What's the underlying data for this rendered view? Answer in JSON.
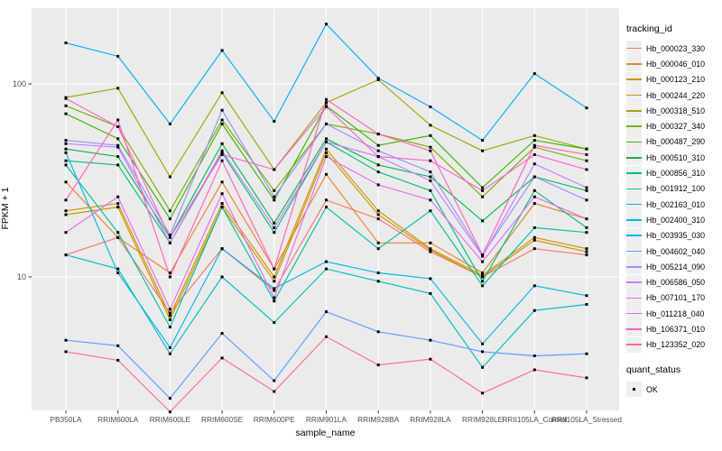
{
  "chart_data": {
    "type": "line",
    "xlabel": "sample_name",
    "ylabel": "FPKM + 1",
    "y_scale": "log10",
    "y_major_ticks": [
      100,
      10
    ],
    "y_minor_gridlines": [
      31.62,
      3.162
    ],
    "grid": "on",
    "panel_bg": "#EBEBEB",
    "major_grid_color": "#FFFFFF",
    "minor_grid_color": "#F3F3F3",
    "tick_label_color": "#4D4D4D",
    "marker": "black-square",
    "categories": [
      "PB350LA",
      "RRIM600LA",
      "RRIM600LE",
      "RRIM600SE",
      "RRIM600PE",
      "RRIM901LA",
      "RRIM928BA",
      "RRIM928LA",
      "RRIM928LE",
      "RRII105LA_Control",
      "RRII105LA_Stressed"
    ],
    "legend": {
      "title": "tracking_id",
      "position": "right"
    },
    "quant_status": {
      "title": "quant_status",
      "items": [
        {
          "label": "OK",
          "marker": "black-square"
        }
      ]
    },
    "series": [
      {
        "name": "Hb_000023_330",
        "color": "#F8766D",
        "values": [
          13,
          16,
          6.5,
          14,
          8.5,
          25,
          20,
          13.5,
          10,
          14,
          13
        ]
      },
      {
        "name": "Hb_000046_010",
        "color": "#EA8331",
        "values": [
          31,
          16,
          10.5,
          31,
          11,
          34,
          15,
          15,
          10.5,
          24,
          20
        ]
      },
      {
        "name": "Hb_000123_210",
        "color": "#D89000",
        "values": [
          22,
          24,
          6.3,
          24,
          10,
          46,
          22,
          14,
          10.2,
          16,
          14
        ]
      },
      {
        "name": "Hb_000244_220",
        "color": "#C09B00",
        "values": [
          21,
          23,
          6.0,
          23,
          9.5,
          44,
          21,
          13.8,
          10,
          15.5,
          13.5
        ]
      },
      {
        "name": "Hb_000318_510",
        "color": "#A3A500",
        "values": [
          85,
          95,
          33,
          90,
          36,
          80,
          105,
          61,
          45,
          54,
          46
        ]
      },
      {
        "name": "Hb_000327_340",
        "color": "#7CAE00",
        "values": [
          77,
          60,
          22,
          65,
          28,
          62,
          55,
          47,
          26,
          47,
          40
        ]
      },
      {
        "name": "Hb_000487_290",
        "color": "#39B600",
        "values": [
          70,
          52,
          20,
          62,
          25,
          77,
          48,
          54,
          29,
          51,
          46
        ]
      },
      {
        "name": "Hb_000510_310",
        "color": "#00BB4E",
        "values": [
          46,
          42,
          16,
          49,
          19,
          52,
          38,
          33,
          19.5,
          33,
          28
        ]
      },
      {
        "name": "Hb_000856_310",
        "color": "#00BF7D",
        "values": [
          40,
          38,
          15,
          44,
          17,
          50,
          35,
          28,
          9.5,
          28,
          18
        ]
      },
      {
        "name": "Hb_001912_100",
        "color": "#00C1A3",
        "values": [
          38,
          17,
          5.5,
          23,
          7.5,
          23,
          14,
          22,
          9,
          18,
          17
        ]
      },
      {
        "name": "Hb_002163_010",
        "color": "#00BFC4",
        "values": [
          13,
          11,
          4.0,
          10,
          5.8,
          11,
          9.5,
          8.2,
          3.4,
          6.7,
          7.2
        ]
      },
      {
        "name": "Hb_002400_310",
        "color": "#00BAE0",
        "values": [
          44,
          10.5,
          4.3,
          14,
          8.7,
          12,
          10.5,
          9.8,
          4.5,
          9.0,
          8.0
        ]
      },
      {
        "name": "Hb_003935_030",
        "color": "#00B0F6",
        "values": [
          163,
          139,
          62,
          149,
          64,
          204,
          107,
          76,
          51,
          113,
          75
        ]
      },
      {
        "name": "Hb_004602_040",
        "color": "#5B9EFF",
        "values": [
          4.7,
          4.4,
          2.35,
          5.1,
          2.9,
          6.6,
          5.2,
          4.7,
          4.1,
          3.9,
          4.0
        ]
      },
      {
        "name": "Hb_005214_090",
        "color": "#9590FF",
        "values": [
          51,
          48,
          16.5,
          73,
          26,
          62,
          45,
          35,
          13,
          33,
          25
        ]
      },
      {
        "name": "Hb_006586_050",
        "color": "#C77CFF",
        "values": [
          49,
          47,
          15,
          45,
          18,
          50,
          42,
          31.5,
          12.8,
          38.5,
          29
        ]
      },
      {
        "name": "Hb_007101_170",
        "color": "#E76BF3",
        "values": [
          17,
          26,
          6.8,
          27,
          7.8,
          42,
          30,
          25,
          12,
          26,
          20
        ]
      },
      {
        "name": "Hb_011218_040",
        "color": "#FA62DB",
        "values": [
          84,
          60,
          16,
          43,
          36,
          76,
          42,
          40,
          28,
          43,
          36
        ]
      },
      {
        "name": "Hb_106371_010",
        "color": "#FF62BC",
        "values": [
          25,
          65,
          10,
          40,
          11,
          83,
          55,
          45,
          13,
          48,
          43
        ]
      },
      {
        "name": "Hb_123352_020",
        "color": "#FF6A98",
        "values": [
          4.1,
          3.7,
          2.0,
          3.8,
          2.55,
          4.9,
          3.5,
          3.75,
          2.5,
          3.3,
          3.0
        ]
      }
    ]
  }
}
